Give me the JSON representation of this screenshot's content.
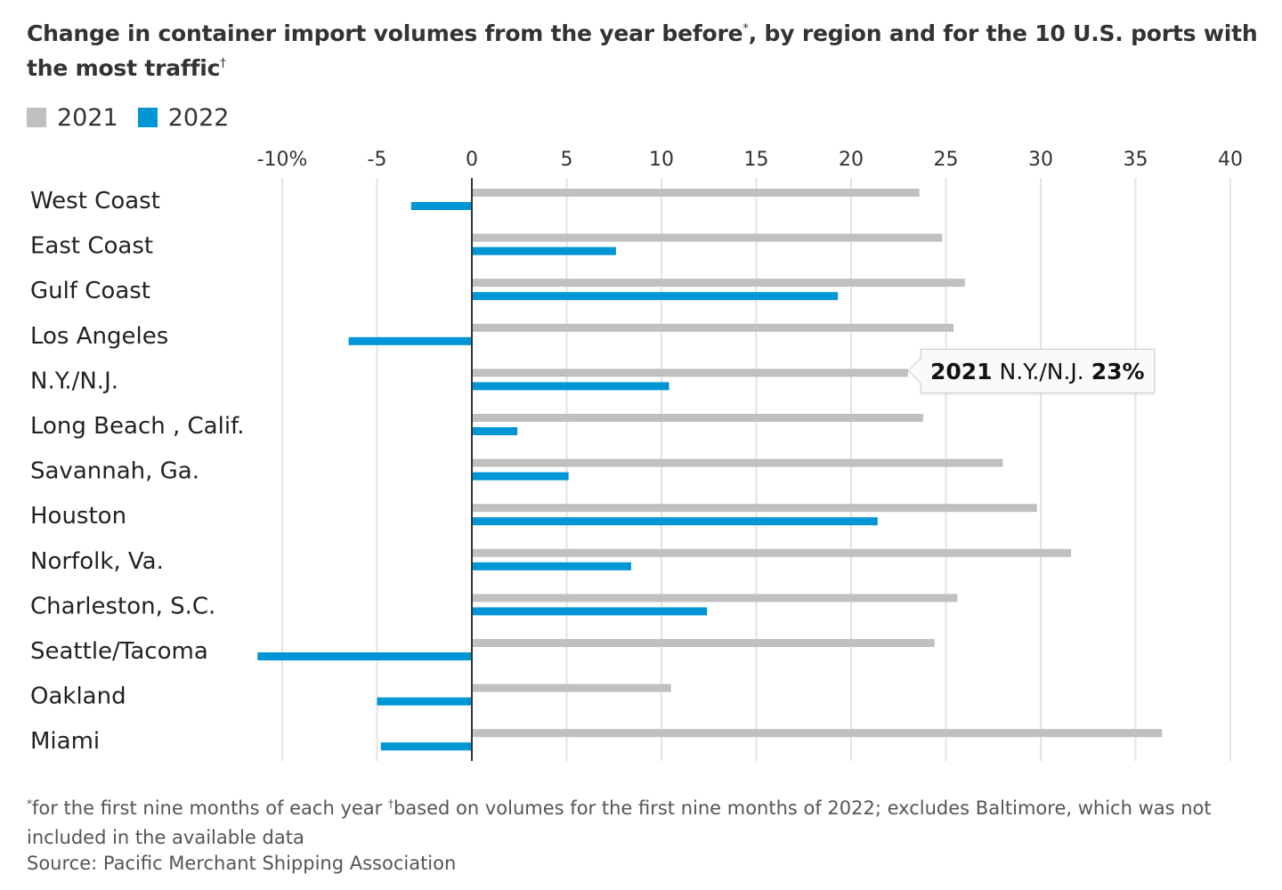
{
  "title": {
    "text": "Change in container import volumes from the year before",
    "mark1": "*",
    "text2": ", by region and for the 10 U.S. ports with the most traffic",
    "mark2": "†"
  },
  "legend": [
    {
      "label": "2021",
      "color": "#c0c0c0"
    },
    {
      "label": "2022",
      "color": "#0096d6"
    }
  ],
  "tooltip": {
    "year": "2021",
    "category": "N.Y./N.J.",
    "value": "23%"
  },
  "footnote": {
    "mark1": "*",
    "text1": "for the first nine months of each year ",
    "mark2": "†",
    "text2": "based on volumes for the first nine months of 2022; excludes Baltimore, which was not included in the available data"
  },
  "source": "Source: Pacific Merchant Shipping Association",
  "chart_data": {
    "type": "bar",
    "orientation": "horizontal",
    "title": "Change in container import volumes from the year before",
    "xlim": [
      -10,
      40
    ],
    "ticks": [
      -10,
      -5,
      0,
      5,
      10,
      15,
      20,
      25,
      30,
      35,
      40
    ],
    "tick_labels": [
      "-10%",
      "-5",
      "0",
      "5",
      "10",
      "15",
      "20",
      "25",
      "30",
      "35",
      "40"
    ],
    "grid": true,
    "legend_position": "top-left",
    "categories": [
      "West Coast",
      "East Coast",
      "Gulf Coast",
      "Los Angeles",
      "N.Y./N.J.",
      "Long Beach , Calif.",
      "Savannah, Ga.",
      "Houston",
      "Norfolk, Va.",
      "Charleston, S.C.",
      "Seattle/Tacoma",
      "Oakland",
      "Miami"
    ],
    "series": [
      {
        "name": "2021",
        "color": "#c0c0c0",
        "values": [
          23.6,
          24.8,
          26.0,
          25.4,
          23.0,
          23.8,
          28.0,
          29.8,
          31.6,
          25.6,
          24.4,
          10.5,
          36.4
        ]
      },
      {
        "name": "2022",
        "color": "#0096d6",
        "values": [
          -3.2,
          7.6,
          19.3,
          -6.5,
          10.4,
          2.4,
          5.1,
          21.4,
          8.4,
          12.4,
          -11.3,
          -5.0,
          -4.8
        ]
      }
    ]
  }
}
